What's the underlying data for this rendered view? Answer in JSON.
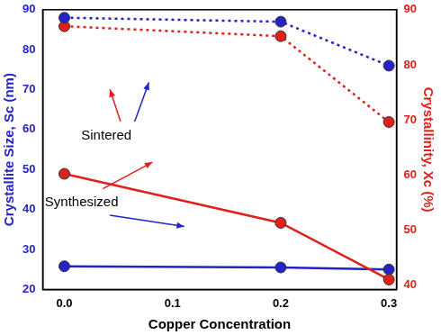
{
  "chart_data": {
    "type": "line",
    "x_label": "Copper Concentration",
    "y_label": "Crystallite Size, Sc (nm)",
    "y2_label": "Crystallinity, Xc (%)",
    "x": [
      0,
      0.2,
      0.3
    ],
    "xlim": [
      -0.02,
      0.307
    ],
    "xticks": [
      {
        "value": 0,
        "label": "0.0"
      },
      0.1,
      0.2,
      0.3
    ],
    "ylim": [
      20,
      90
    ],
    "yticks": [
      20,
      30,
      40,
      50,
      60,
      70,
      80,
      90
    ],
    "y2lim": [
      39.2,
      90
    ],
    "y2ticks": [
      40,
      50,
      60,
      70,
      80,
      90
    ],
    "grid": false,
    "series": [
      {
        "color": "#2323c8",
        "values": [
          88,
          87,
          76
        ],
        "line_style": "dotted",
        "marker": "circle"
      },
      {
        "color": "#e0201b",
        "values": [
          87,
          85.2,
          69.6
        ],
        "line_style": "dotted",
        "marker": "circle",
        "axis": "y2"
      },
      {
        "color": "#e0201b",
        "values": [
          60.2,
          51.3,
          41
        ],
        "line_style": "solid",
        "marker": "circle",
        "axis": "y2"
      },
      {
        "color": "#2323c8",
        "values": [
          25.8,
          25.5,
          25
        ],
        "line_style": "solid",
        "marker": "circle"
      }
    ],
    "annotations": [
      "Sintered",
      "Synthesized"
    ]
  }
}
